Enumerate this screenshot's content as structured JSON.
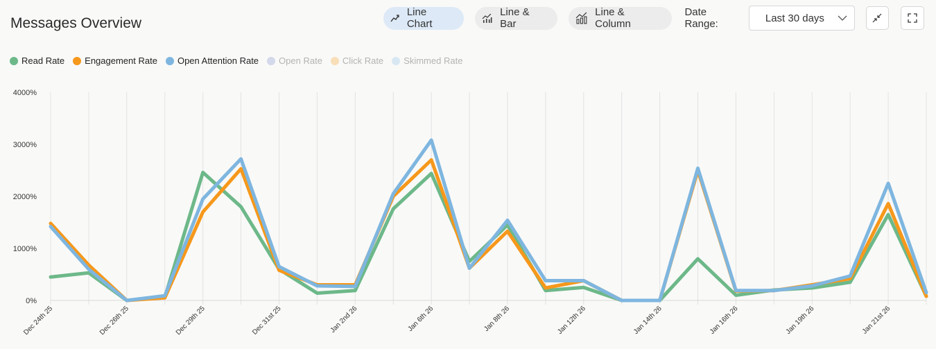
{
  "header": {
    "title": "Messages Overview",
    "chart_types": [
      {
        "label": "Line Chart",
        "icon": "line-chart-icon",
        "active": true
      },
      {
        "label": "Line & Bar",
        "icon": "line-bar-icon",
        "active": false
      },
      {
        "label": "Line & Column",
        "icon": "line-column-icon",
        "active": false
      }
    ],
    "date_range_label": "Date Range:",
    "date_range_value": "Last 30 days"
  },
  "colors": {
    "read": "#6db889",
    "engagement": "#f6981b",
    "open_attention": "#7eb6df",
    "open": "#d3d8ea",
    "click": "#f8dfb8",
    "skimmed": "#d8e8f3",
    "grid": "#e2e2e2"
  },
  "legend": [
    {
      "label": "Read Rate",
      "color": "#6db889",
      "enabled": true
    },
    {
      "label": "Engagement Rate",
      "color": "#f6981b",
      "enabled": true
    },
    {
      "label": "Open Attention Rate",
      "color": "#7eb6df",
      "enabled": true
    },
    {
      "label": "Open Rate",
      "color": "#d3d8ea",
      "enabled": false
    },
    {
      "label": "Click Rate",
      "color": "#f8dfb8",
      "enabled": false
    },
    {
      "label": "Skimmed Rate",
      "color": "#d8e8f3",
      "enabled": false
    }
  ],
  "chart_data": {
    "type": "line",
    "title": "Messages Overview",
    "ylim": [
      0,
      4000
    ],
    "yticks": [
      0,
      1000,
      2000,
      3000,
      4000
    ],
    "ytick_labels": [
      "0%",
      "1000%",
      "2000%",
      "3000%",
      "4000%"
    ],
    "grid": true,
    "x_points": 24,
    "x_tick_labels": [
      {
        "index": 0,
        "label": "Dec 24th 25"
      },
      {
        "index": 2,
        "label": "Dec 26th 25"
      },
      {
        "index": 4,
        "label": "Dec 29th 25"
      },
      {
        "index": 6,
        "label": "Dec 31st 25"
      },
      {
        "index": 8,
        "label": "Jan 2nd 26"
      },
      {
        "index": 10,
        "label": "Jan 6th 26"
      },
      {
        "index": 12,
        "label": "Jan 8th 26"
      },
      {
        "index": 14,
        "label": "Jan 12th 26"
      },
      {
        "index": 16,
        "label": "Jan 14th 26"
      },
      {
        "index": 18,
        "label": "Jan 16th 26"
      },
      {
        "index": 20,
        "label": "Jan 19th 26"
      },
      {
        "index": 22,
        "label": "Jan 21st 26"
      }
    ],
    "series": [
      {
        "name": "Read Rate",
        "color": "#6db889",
        "values": [
          450,
          530,
          0,
          60,
          2460,
          1800,
          600,
          140,
          190,
          1760,
          2440,
          750,
          1450,
          190,
          250,
          0,
          0,
          800,
          100,
          200,
          240,
          350,
          1650,
          80
        ]
      },
      {
        "name": "Engagement Rate",
        "color": "#f6981b",
        "values": [
          1480,
          680,
          0,
          50,
          1700,
          2530,
          580,
          300,
          300,
          2000,
          2700,
          620,
          1330,
          240,
          380,
          0,
          0,
          2500,
          180,
          190,
          300,
          420,
          1860,
          80
        ]
      },
      {
        "name": "Open Attention Rate",
        "color": "#7eb6df",
        "values": [
          1420,
          600,
          0,
          90,
          1950,
          2720,
          650,
          280,
          270,
          2050,
          3080,
          620,
          1540,
          380,
          380,
          0,
          0,
          2540,
          190,
          190,
          280,
          470,
          2250,
          150
        ]
      }
    ]
  }
}
